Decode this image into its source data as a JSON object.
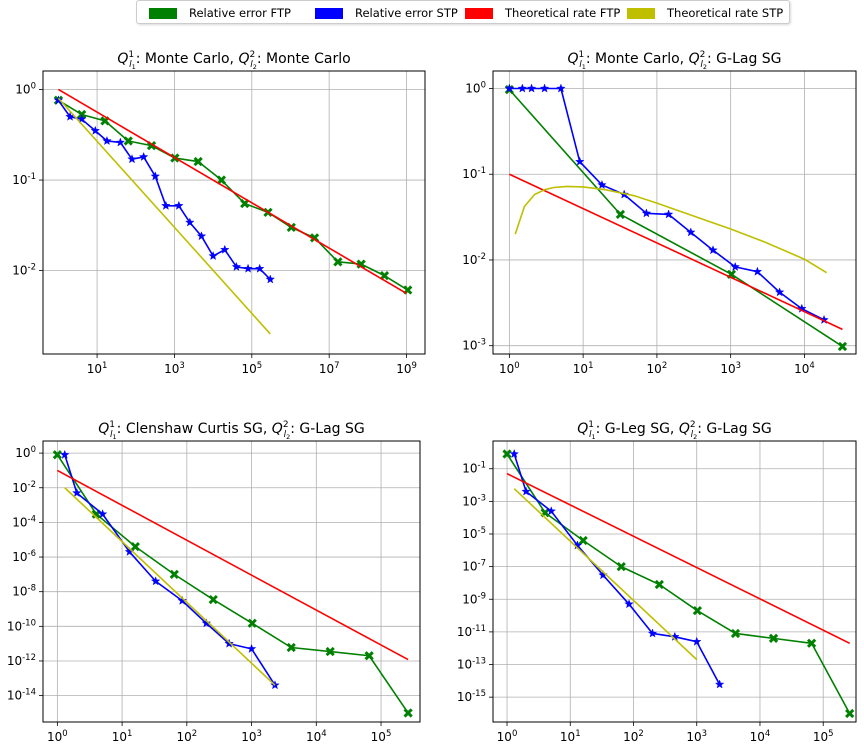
{
  "legend": {
    "entries": [
      {
        "label": "Relative error FTP",
        "color": "#008000"
      },
      {
        "label": "Relative error STP",
        "color": "#0000ff"
      },
      {
        "label": "Theoretical rate FTP",
        "color": "#ff0000"
      },
      {
        "label": "Theoretical rate STP",
        "color": "#bfbf00"
      }
    ]
  },
  "chart_data": [
    {
      "type": "line",
      "title": {
        "sub1": "l",
        "sub1i": "1",
        "text1": ": Monte Carlo, ",
        "sub2": "l",
        "sub2i": "2",
        "text2": ": Monte Carlo"
      },
      "xscale": "log",
      "yscale": "log",
      "xlim": [
        0.4,
        3000000000
      ],
      "ylim": [
        0.0012,
        1.6
      ],
      "x_ticks": [
        {
          "v": 10,
          "e": "1"
        },
        {
          "v": 1000,
          "e": "3"
        },
        {
          "v": 100000,
          "e": "5"
        },
        {
          "v": 10000000,
          "e": "7"
        },
        {
          "v": 1000000000,
          "e": "9"
        }
      ],
      "y_ticks": [
        {
          "v": 1,
          "e": "0"
        },
        {
          "v": 0.1,
          "e": "-1"
        },
        {
          "v": 0.01,
          "e": "-2"
        }
      ],
      "grid": true,
      "series": [
        {
          "name": "Relative error FTP",
          "color": "#008000",
          "marker": "X",
          "x": [
            1,
            4,
            16,
            64,
            256,
            1024,
            4096,
            16384,
            65536,
            262144,
            1048576,
            4194304,
            16777216,
            67108864,
            268435456,
            1073741824
          ],
          "y": [
            0.76,
            0.53,
            0.45,
            0.27,
            0.24,
            0.175,
            0.16,
            0.1,
            0.055,
            0.044,
            0.03,
            0.023,
            0.0125,
            0.0118,
            0.0088,
            0.0061
          ]
        },
        {
          "name": "Relative error STP",
          "color": "#0000ff",
          "marker": "*",
          "x": [
            1,
            2,
            4,
            9,
            18,
            40,
            80,
            160,
            320,
            600,
            1300,
            2500,
            5000,
            10000,
            20000,
            40000,
            80000,
            160000,
            300000
          ],
          "y": [
            0.76,
            0.5,
            0.47,
            0.35,
            0.27,
            0.26,
            0.17,
            0.18,
            0.11,
            0.052,
            0.052,
            0.034,
            0.024,
            0.0145,
            0.017,
            0.011,
            0.0105,
            0.0105,
            0.008
          ]
        },
        {
          "name": "Theoretical rate FTP",
          "color": "#ff0000",
          "marker": "none",
          "x": [
            1,
            1000000000
          ],
          "y": [
            1.0,
            0.0056
          ]
        },
        {
          "name": "Theoretical rate STP",
          "color": "#bfbf00",
          "marker": "none",
          "x": [
            1,
            300000
          ],
          "y": [
            0.8,
            0.002
          ]
        }
      ]
    },
    {
      "type": "line",
      "title": {
        "sub1": "l",
        "sub1i": "1",
        "text1": ": Monte Carlo, ",
        "sub2": "l",
        "sub2i": "2",
        "text2": ": G-Lag SG"
      },
      "xscale": "log",
      "yscale": "log",
      "xlim": [
        0.6,
        50000
      ],
      "ylim": [
        0.0008,
        1.6
      ],
      "x_ticks": [
        {
          "v": 1,
          "e": "0"
        },
        {
          "v": 10,
          "e": "1"
        },
        {
          "v": 100,
          "e": "2"
        },
        {
          "v": 1000,
          "e": "3"
        },
        {
          "v": 10000,
          "e": "4"
        }
      ],
      "y_ticks": [
        {
          "v": 1,
          "e": "0"
        },
        {
          "v": 0.1,
          "e": "-1"
        },
        {
          "v": 0.01,
          "e": "-2"
        },
        {
          "v": 0.001,
          "e": "-3"
        }
      ],
      "grid": true,
      "series": [
        {
          "name": "Relative error FTP",
          "color": "#008000",
          "marker": "X",
          "x": [
            1,
            32,
            1024,
            32768
          ],
          "y": [
            0.97,
            0.034,
            0.0068,
            0.00098
          ]
        },
        {
          "name": "Relative error STP",
          "color": "#0000ff",
          "marker": "*",
          "x": [
            1,
            1.5,
            2,
            3,
            5,
            9,
            18,
            36,
            72,
            144,
            288,
            576,
            1152,
            2304,
            4608,
            9216,
            18432
          ],
          "y": [
            1.0,
            1.0,
            1.0,
            1.0,
            1.0,
            0.14,
            0.075,
            0.058,
            0.035,
            0.034,
            0.021,
            0.013,
            0.0083,
            0.0073,
            0.0042,
            0.0027,
            0.002
          ]
        },
        {
          "name": "Theoretical rate FTP",
          "color": "#ff0000",
          "marker": "none",
          "x": [
            1,
            32768
          ],
          "y": [
            0.1,
            0.00155
          ]
        },
        {
          "name": "Theoretical rate STP",
          "color": "#bfbf00",
          "marker": "none",
          "x": [
            1.2,
            1.6,
            2.2,
            3,
            4,
            5,
            6,
            10,
            20,
            50,
            100,
            300,
            1000,
            3000,
            10000,
            20000
          ],
          "y": [
            0.02,
            0.042,
            0.058,
            0.066,
            0.07,
            0.071,
            0.072,
            0.071,
            0.066,
            0.056,
            0.046,
            0.033,
            0.023,
            0.016,
            0.0102,
            0.0071
          ]
        }
      ]
    },
    {
      "type": "line",
      "title": {
        "sub1": "l",
        "sub1i": "1",
        "text1": ": Clenshaw Curtis SG, ",
        "sub2": "l",
        "sub2i": "2",
        "text2": ": G-Lag SG"
      },
      "xscale": "log",
      "yscale": "log",
      "xlim": [
        0.6,
        400000
      ],
      "ylim": [
        3e-16,
        5
      ],
      "x_ticks": [
        {
          "v": 1,
          "e": "0"
        },
        {
          "v": 10,
          "e": "1"
        },
        {
          "v": 100,
          "e": "2"
        },
        {
          "v": 1000,
          "e": "3"
        },
        {
          "v": 10000,
          "e": "4"
        },
        {
          "v": 100000,
          "e": "5"
        }
      ],
      "y_ticks": [
        {
          "v": 1,
          "e": "0"
        },
        {
          "v": 0.01,
          "e": "-2"
        },
        {
          "v": 0.0001,
          "e": "-4"
        },
        {
          "v": 1e-06,
          "e": "-6"
        },
        {
          "v": 1e-08,
          "e": "-8"
        },
        {
          "v": 1e-10,
          "e": "-10"
        },
        {
          "v": 1e-12,
          "e": "-12"
        },
        {
          "v": 1e-14,
          "e": "-14"
        }
      ],
      "grid": true,
      "series": [
        {
          "name": "Relative error FTP",
          "color": "#008000",
          "marker": "X",
          "x": [
            1,
            4,
            16,
            64,
            256,
            1024,
            4096,
            16384,
            65536,
            262144
          ],
          "y": [
            0.8,
            0.0003,
            4e-06,
            1e-07,
            3.5e-09,
            1.5e-10,
            6e-12,
            3.5e-12,
            2e-12,
            1e-15
          ]
        },
        {
          "name": "Relative error STP",
          "color": "#0000ff",
          "marker": "*",
          "x": [
            1.3,
            2,
            5,
            13,
            33,
            85,
            200,
            450,
            1000,
            2300
          ],
          "y": [
            0.8,
            0.005,
            0.0003,
            2e-06,
            4e-08,
            3e-09,
            1.5e-10,
            1e-11,
            5e-12,
            4e-14
          ]
        },
        {
          "name": "Theoretical rate FTP",
          "color": "#ff0000",
          "marker": "none",
          "x": [
            1,
            262144
          ],
          "y": [
            0.1,
            1.2e-12
          ]
        },
        {
          "name": "Theoretical rate STP",
          "color": "#bfbf00",
          "marker": "none",
          "x": [
            1.3,
            2300
          ],
          "y": [
            0.01,
            4e-14
          ]
        }
      ]
    },
    {
      "type": "line",
      "title": {
        "sub1": "l",
        "sub1i": "1",
        "text1": ": G-Leg SG, ",
        "sub2": "l",
        "sub2i": "2",
        "text2": ": G-Lag SG"
      },
      "xscale": "log",
      "yscale": "log",
      "xlim": [
        0.6,
        330000
      ],
      "ylim": [
        3e-17,
        5
      ],
      "x_ticks": [
        {
          "v": 1,
          "e": "0"
        },
        {
          "v": 10,
          "e": "1"
        },
        {
          "v": 100,
          "e": "2"
        },
        {
          "v": 1000,
          "e": "3"
        },
        {
          "v": 10000,
          "e": "4"
        },
        {
          "v": 100000,
          "e": "5"
        }
      ],
      "y_ticks": [
        {
          "v": 0.1,
          "e": "-1"
        },
        {
          "v": 0.001,
          "e": "-3"
        },
        {
          "v": 1e-05,
          "e": "-5"
        },
        {
          "v": 1e-07,
          "e": "-7"
        },
        {
          "v": 1e-09,
          "e": "-9"
        },
        {
          "v": 1e-11,
          "e": "-11"
        },
        {
          "v": 1e-13,
          "e": "-13"
        },
        {
          "v": 1e-15,
          "e": "-15"
        }
      ],
      "grid": true,
      "series": [
        {
          "name": "Relative error FTP",
          "color": "#008000",
          "marker": "X",
          "x": [
            1,
            4,
            16,
            64,
            256,
            1024,
            4096,
            16384,
            65536,
            262144
          ],
          "y": [
            0.8,
            0.0002,
            4e-06,
            1e-07,
            8e-09,
            2e-10,
            8e-12,
            4e-12,
            2e-12,
            1e-16
          ]
        },
        {
          "name": "Relative error STP",
          "color": "#0000ff",
          "marker": "*",
          "x": [
            1.3,
            2,
            5,
            13,
            33,
            85,
            200,
            450,
            1000,
            2300
          ],
          "y": [
            0.8,
            0.004,
            0.00025,
            2e-06,
            3e-08,
            5e-10,
            8e-12,
            5e-12,
            2.5e-12,
            6e-15
          ]
        },
        {
          "name": "Theoretical rate FTP",
          "color": "#ff0000",
          "marker": "none",
          "x": [
            1,
            262144
          ],
          "y": [
            0.05,
            2e-12
          ]
        },
        {
          "name": "Theoretical rate STP",
          "color": "#bfbf00",
          "marker": "none",
          "x": [
            1.3,
            1000
          ],
          "y": [
            0.006,
            2e-13
          ]
        }
      ]
    }
  ]
}
